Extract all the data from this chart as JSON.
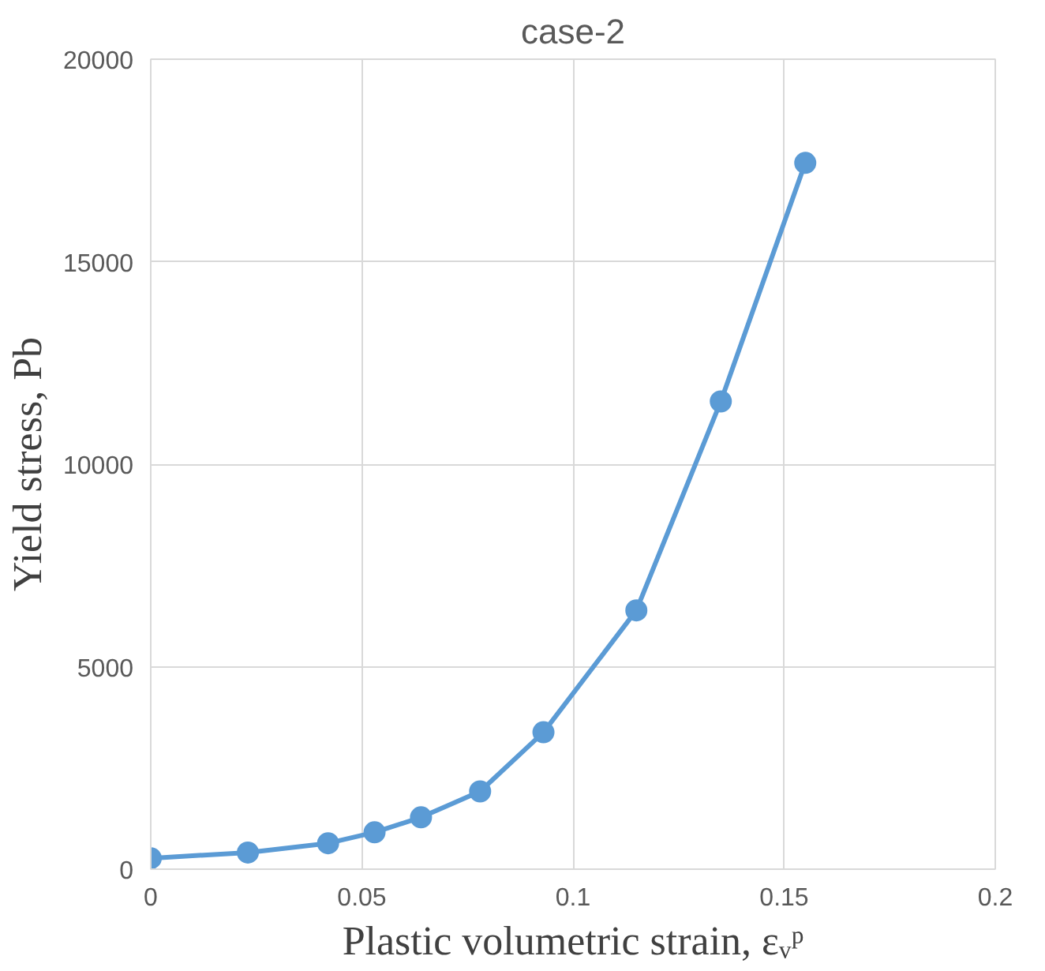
{
  "chart_data": {
    "type": "line",
    "title": "case-2",
    "xlabel": "Plastic volumetric strain, εᵥᵖ",
    "ylabel": "Yield stress, Pb",
    "x": [
      0,
      0.023,
      0.042,
      0.053,
      0.064,
      0.078,
      0.093,
      0.115,
      0.135,
      0.155
    ],
    "series": [
      {
        "color": "#5b9bd5",
        "values": [
          270,
          410,
          640,
          910,
          1280,
          1920,
          3380,
          6390,
          11550,
          17440
        ]
      }
    ],
    "xlim": [
      0,
      0.2
    ],
    "xticks": [
      0,
      0.05,
      0.1,
      0.15,
      0.2
    ],
    "ylim": [
      0,
      20000
    ],
    "yticks": [
      0,
      5000,
      10000,
      15000,
      20000
    ],
    "grid": true,
    "marker": "circle",
    "line_style": "solid"
  }
}
